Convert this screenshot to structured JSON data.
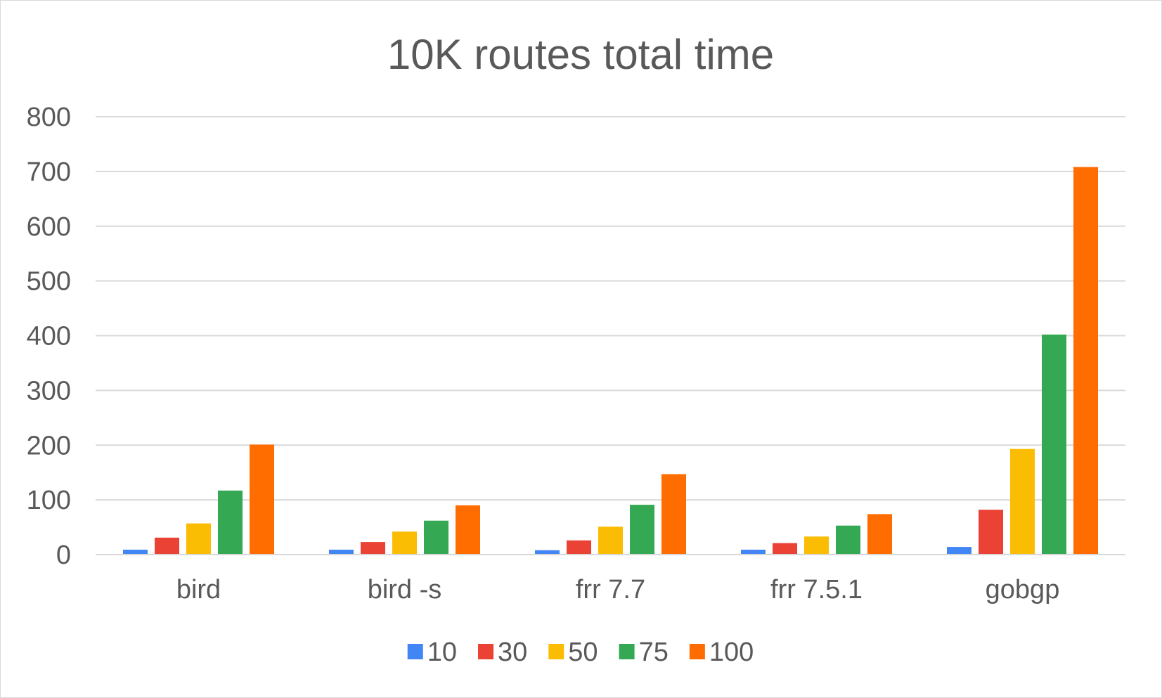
{
  "chart_data": {
    "type": "bar",
    "title": "10K routes total time",
    "xlabel": "",
    "ylabel": "",
    "ylim": [
      0,
      800
    ],
    "yticks": [
      0,
      100,
      200,
      300,
      400,
      500,
      600,
      700,
      800
    ],
    "grid": true,
    "legend_position": "bottom",
    "categories": [
      "bird",
      "bird -s",
      "frr 7.7",
      "frr 7.5.1",
      "gobgp"
    ],
    "series": [
      {
        "name": "10",
        "color": "#4285f4",
        "values": [
          9,
          9,
          8,
          9,
          14
        ]
      },
      {
        "name": "30",
        "color": "#ea4335",
        "values": [
          31,
          23,
          26,
          21,
          82
        ]
      },
      {
        "name": "50",
        "color": "#fbbc04",
        "values": [
          57,
          42,
          51,
          33,
          193
        ]
      },
      {
        "name": "75",
        "color": "#34a853",
        "values": [
          117,
          62,
          91,
          53,
          402
        ]
      },
      {
        "name": "100",
        "color": "#ff6d01",
        "values": [
          201,
          90,
          147,
          74,
          708
        ]
      }
    ]
  }
}
